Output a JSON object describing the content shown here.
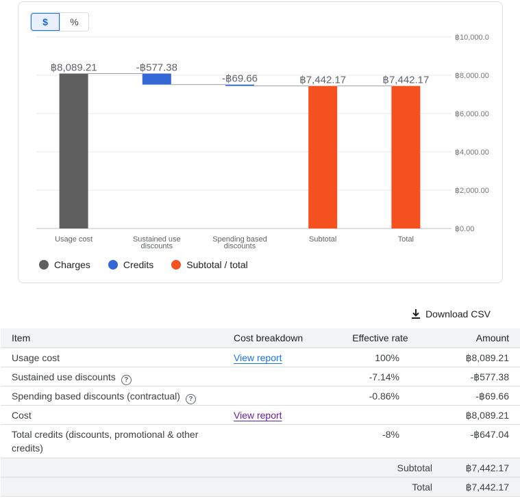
{
  "toggle": {
    "dollar": "$",
    "percent": "%",
    "active": "dollar"
  },
  "colors": {
    "charges": "#5f5f5f",
    "credits": "#3367d6",
    "subtotal": "#f4511e",
    "grid": "#e8eaed"
  },
  "chart_data": {
    "type": "waterfall",
    "categories": [
      "Usage cost",
      "Sustained use discounts",
      "Spending based discounts",
      "Subtotal",
      "Total"
    ],
    "category_lines": [
      [
        "Usage cost"
      ],
      [
        "Sustained use",
        "discounts"
      ],
      [
        "Spending based",
        "discounts"
      ],
      [
        "Subtotal"
      ],
      [
        "Total"
      ]
    ],
    "bars": [
      {
        "kind": "charges",
        "from": 0,
        "to": 8089.21,
        "label": "฿8,089.21"
      },
      {
        "kind": "credits",
        "from": 8089.21,
        "to": 7511.83,
        "label": "-฿577.38"
      },
      {
        "kind": "credits",
        "from": 7511.83,
        "to": 7442.17,
        "label": "-฿69.66"
      },
      {
        "kind": "subtotal",
        "from": 0,
        "to": 7442.17,
        "label": "฿7,442.17"
      },
      {
        "kind": "subtotal",
        "from": 0,
        "to": 7442.17,
        "label": "฿7,442.17"
      }
    ],
    "ylim": [
      0,
      10000
    ],
    "y_ticks": [
      0,
      2000,
      4000,
      6000,
      8000,
      10000
    ],
    "y_tick_labels": [
      "฿0.00",
      "฿2,000.00",
      "฿4,000.00",
      "฿6,000.00",
      "฿8,000.00",
      "฿10,000.0"
    ],
    "grid": true,
    "legend": [
      {
        "name": "Charges",
        "kind": "charges"
      },
      {
        "name": "Credits",
        "kind": "credits"
      },
      {
        "name": "Subtotal / total",
        "kind": "subtotal"
      }
    ],
    "legend_position": "bottom-left"
  },
  "download": {
    "label": "Download CSV"
  },
  "table": {
    "headers": {
      "item": "Item",
      "breakdown": "Cost breakdown",
      "rate": "Effective rate",
      "amount": "Amount"
    },
    "rows": [
      {
        "item": "Usage cost",
        "link": "View report",
        "rate": "100%",
        "amount": "฿8,089.21"
      },
      {
        "item": "Sustained use discounts",
        "rate": "-7.14%",
        "amount": "-฿577.38"
      },
      {
        "item": "Spending based discounts (contractual)",
        "rate": "-0.86%",
        "amount": "-฿69.66"
      },
      {
        "item": "Cost",
        "link": "View report",
        "amount": "฿8,089.21"
      },
      {
        "item": "Total credits (discounts, promotional & other credits)",
        "rate": "-8%",
        "amount": "-฿647.04"
      }
    ],
    "subtotal": {
      "label": "Subtotal",
      "amount": "฿7,442.17"
    },
    "total": {
      "label": "Total",
      "amount": "฿7,442.17"
    }
  }
}
